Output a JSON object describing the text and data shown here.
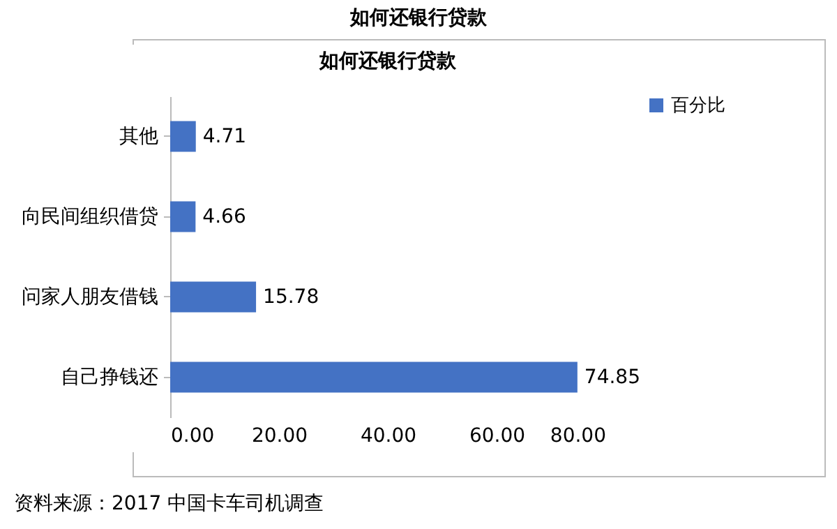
{
  "chart_data": {
    "type": "bar",
    "orientation": "horizontal",
    "title": "如何还银行贷款",
    "subtitle": "如何还银行贷款",
    "categories": [
      "其他",
      "向民间组织借贷",
      "问家人朋友借钱",
      "自己挣钱还"
    ],
    "series": [
      {
        "name": "百分比",
        "color": "#4472c4",
        "values": [
          4.71,
          4.66,
          15.78,
          74.85
        ]
      }
    ],
    "xlim": [
      0,
      80
    ],
    "xticks": [
      {
        "value": 0,
        "label": "0.00"
      },
      {
        "value": 20,
        "label": "20.00"
      },
      {
        "value": 40,
        "label": "40.00"
      },
      {
        "value": 60,
        "label": "60.00"
      },
      {
        "value": 80,
        "label": "80.00"
      }
    ],
    "data_labels": true,
    "grid": false,
    "legend": "right",
    "annotations": [
      "资料来源：2017  中国卡车司机调查"
    ]
  }
}
